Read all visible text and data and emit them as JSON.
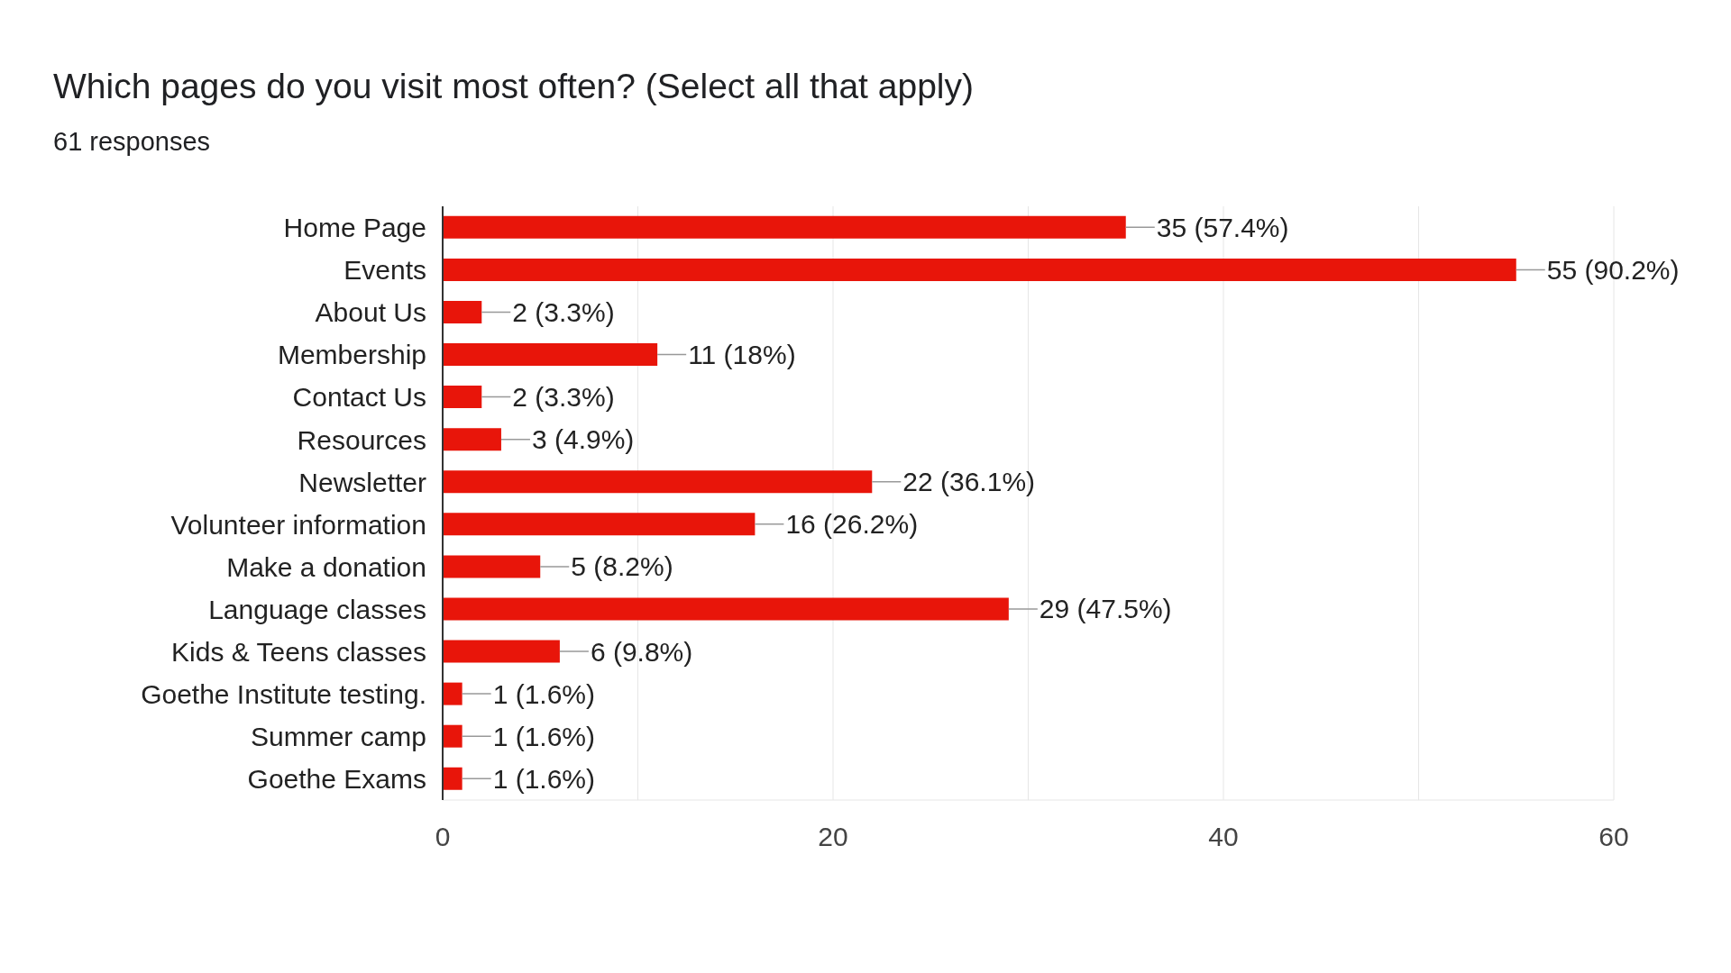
{
  "chart_data": {
    "type": "bar",
    "orientation": "horizontal",
    "title": "Which pages do you visit most often? (Select all that apply)",
    "subtitle": "61 responses",
    "categories": [
      "Home Page",
      "Events",
      "About Us",
      "Membership",
      "Contact Us",
      "Resources",
      "Newsletter",
      "Volunteer information",
      "Make a donation",
      "Language classes",
      "Kids & Teens classes",
      "Goethe Institute testing.",
      "Summer camp",
      "Goethe Exams"
    ],
    "values": [
      35,
      55,
      2,
      11,
      2,
      3,
      22,
      16,
      5,
      29,
      6,
      1,
      1,
      1
    ],
    "value_labels": [
      "35 (57.4%)",
      "55 (90.2%)",
      "2 (3.3%)",
      "11 (18%)",
      "2 (3.3%)",
      "3 (4.9%)",
      "22 (36.1%)",
      "16 (26.2%)",
      "5 (8.2%)",
      "29 (47.5%)",
      "6 (9.8%)",
      "1 (1.6%)",
      "1 (1.6%)",
      "1 (1.6%)"
    ],
    "color": "#e8150a",
    "xlim": [
      0,
      60
    ],
    "xticks": [
      0,
      {
        "value": 10,
        "label": null
      },
      20,
      {
        "value": 30,
        "label": null
      },
      40,
      {
        "value": 50,
        "label": null
      },
      60
    ],
    "grid": "x",
    "legend": false
  }
}
